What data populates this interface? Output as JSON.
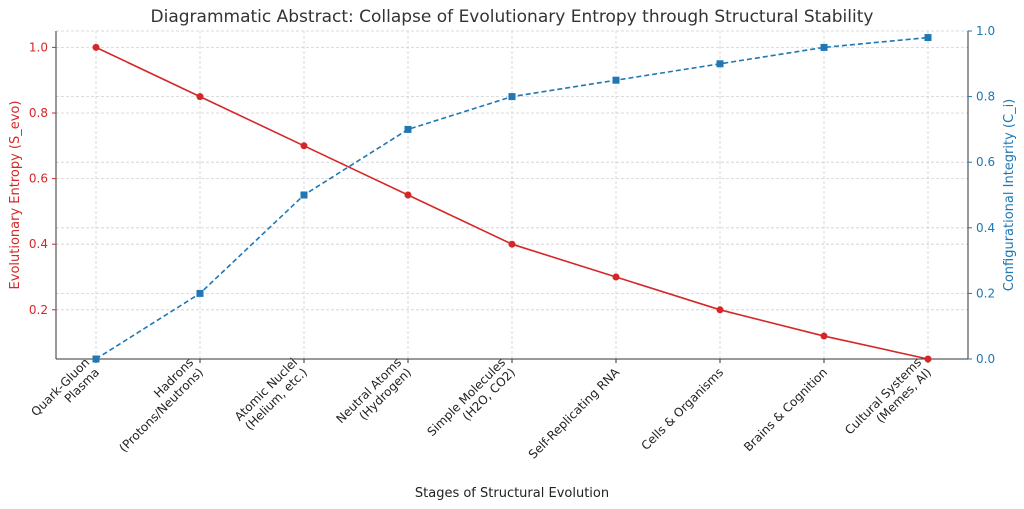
{
  "chart_data": {
    "type": "line",
    "title": "Diagrammatic Abstract: Collapse of Evolutionary Entropy through Structural Stability",
    "xlabel": "Stages of Structural Evolution",
    "ylabel_left": "Evolutionary Entropy (S_evo)",
    "ylabel_right": "Configurational Integrity (C_i)",
    "categories": [
      [
        "Quark-Gluon",
        "Plasma"
      ],
      [
        "Hadrons",
        "(Protons/Neutrons)"
      ],
      [
        "Atomic Nuclei",
        "(Helium, etc.)"
      ],
      [
        "Neutral Atoms",
        "(Hydrogen)"
      ],
      [
        "Simple Molecules",
        "(H2O, CO2)"
      ],
      [
        "Self-Replicating RNA"
      ],
      [
        "Cells & Organisms"
      ],
      [
        "Brains & Cognition"
      ],
      [
        "Cultural Systems",
        "(Memes, AI)"
      ]
    ],
    "series": [
      {
        "name": "Evolutionary Entropy (S_evo)",
        "axis": "left",
        "color": "#d62728",
        "marker": "circle",
        "linestyle": "solid",
        "values": [
          1.0,
          0.85,
          0.7,
          0.55,
          0.4,
          0.3,
          0.2,
          0.12,
          0.05
        ]
      },
      {
        "name": "Configurational Integrity (C_i)",
        "axis": "right",
        "color": "#1f77b4",
        "marker": "square",
        "linestyle": "dashed",
        "values": [
          0.0,
          0.2,
          0.5,
          0.7,
          0.8,
          0.85,
          0.9,
          0.95,
          0.98
        ]
      }
    ],
    "ylim_left": [
      0.05,
      1.05
    ],
    "yticks_left": [
      0.2,
      0.4,
      0.6,
      0.8,
      1.0
    ],
    "ylim_right": [
      0.0,
      1.0
    ],
    "yticks_right": [
      0.0,
      0.2,
      0.4,
      0.6,
      0.8,
      1.0
    ],
    "grid": true
  }
}
